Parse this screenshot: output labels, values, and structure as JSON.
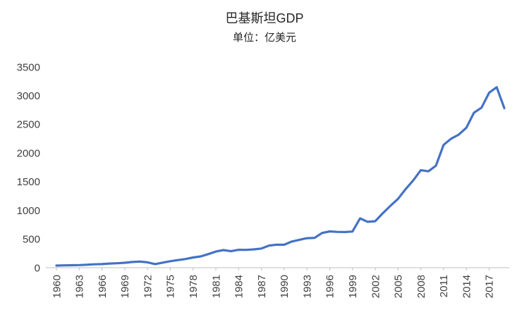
{
  "chart": {
    "line_color": "#4472C4",
    "axis_color": "#BFBFBF",
    "label_color": "#404040"
  },
  "chart_data": {
    "type": "line",
    "title": "巴基斯坦GDP",
    "subtitle": "单位：亿美元",
    "xlabel": "",
    "ylabel": "亿美元",
    "ylim": [
      0,
      3500
    ],
    "ytick_interval": 500,
    "grid": false,
    "legend": "none",
    "x": [
      1960,
      1961,
      1962,
      1963,
      1964,
      1965,
      1966,
      1967,
      1968,
      1969,
      1970,
      1971,
      1972,
      1973,
      1974,
      1975,
      1976,
      1977,
      1978,
      1979,
      1980,
      1981,
      1982,
      1983,
      1984,
      1985,
      1986,
      1987,
      1988,
      1989,
      1990,
      1991,
      1992,
      1993,
      1994,
      1995,
      1996,
      1997,
      1998,
      1999,
      2000,
      2001,
      2002,
      2003,
      2004,
      2005,
      2006,
      2007,
      2008,
      2009,
      2010,
      2011,
      2012,
      2013,
      2014,
      2015,
      2016,
      2017,
      2018,
      2019
    ],
    "values": [
      37,
      41,
      43,
      46,
      51,
      59,
      63,
      72,
      77,
      86,
      100,
      107,
      93,
      63,
      88,
      113,
      133,
      151,
      178,
      197,
      237,
      281,
      307,
      287,
      312,
      311,
      319,
      334,
      385,
      402,
      400,
      455,
      486,
      515,
      519,
      606,
      633,
      624,
      622,
      630,
      860,
      800,
      810,
      950,
      1080,
      1200,
      1370,
      1520,
      1700,
      1680,
      1780,
      2140,
      2250,
      2320,
      2440,
      2700,
      2790,
      3050,
      3146,
      2780
    ],
    "xtick_labels": [
      "1960",
      "1963",
      "1966",
      "1969",
      "1972",
      "1975",
      "1978",
      "1981",
      "1984",
      "1987",
      "1990",
      "1993",
      "1996",
      "1999",
      "2002",
      "2005",
      "2008",
      "2011",
      "2014",
      "2017"
    ]
  }
}
